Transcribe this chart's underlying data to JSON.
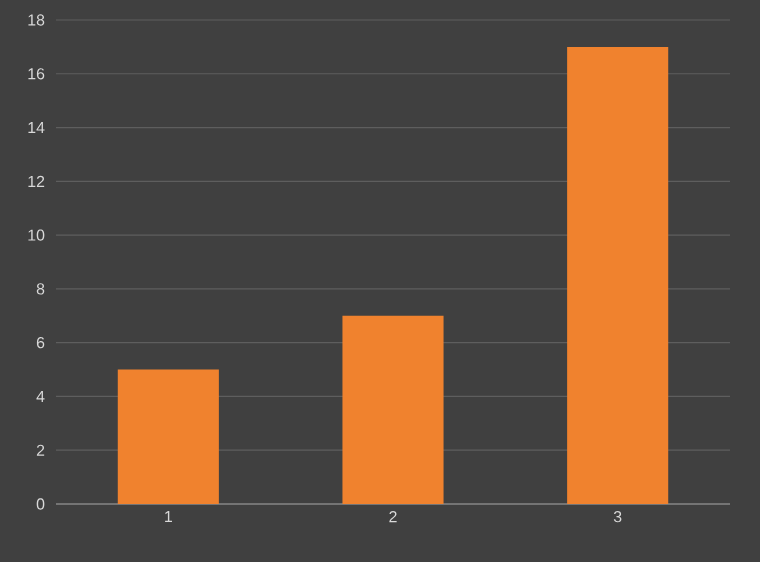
{
  "chart_data": {
    "type": "bar",
    "categories": [
      "1",
      "2",
      "3"
    ],
    "values": [
      5,
      7,
      17
    ],
    "color": "#f0822e",
    "ylim": [
      0,
      18
    ],
    "yticks": [
      0,
      2,
      4,
      6,
      8,
      10,
      12,
      14,
      16,
      18
    ],
    "grid": "y"
  }
}
